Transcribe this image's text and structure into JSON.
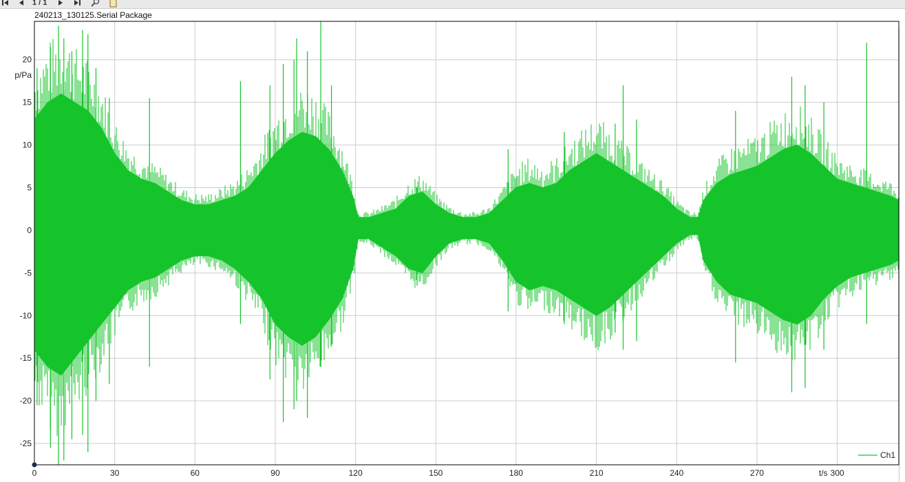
{
  "toolbar": {
    "page_indicator": "1 / 1",
    "first_icon": "first-page-icon",
    "prev_icon": "prev-page-icon",
    "next_icon": "next-page-icon",
    "last_icon": "last-page-icon",
    "tool_icon": "zoom-tool-icon",
    "clipboard_icon": "clipboard-icon"
  },
  "window": {
    "title": "240213_130125.Serial Package"
  },
  "colors": {
    "signal": "#14c42a",
    "grid": "#cccccc",
    "axis": "#000000"
  },
  "chart_data": {
    "type": "area",
    "title": "",
    "xlabel": "t/s",
    "ylabel": "p/Pa",
    "xlim": [
      0,
      323
    ],
    "ylim": [
      -27.5,
      24.5
    ],
    "x_ticks": [
      0,
      30,
      60,
      90,
      120,
      150,
      180,
      210,
      240,
      270,
      300
    ],
    "x_tick_labels": [
      "0",
      "30",
      "60",
      "90",
      "120",
      "150",
      "180",
      "210",
      "240",
      "270",
      "300"
    ],
    "y_ticks": [
      20,
      15,
      10,
      5,
      0,
      -5,
      -10,
      -15,
      -20,
      -25
    ],
    "y_tick_labels": [
      "20",
      "15",
      "10",
      "5",
      "0",
      "-5",
      "-10",
      "-15",
      "-20",
      "-25"
    ],
    "grid": true,
    "legend": {
      "position": "bottom-right",
      "entries": [
        "Ch1"
      ]
    },
    "series": [
      {
        "name": "Ch1",
        "x": [
          0,
          5,
          10,
          15,
          20,
          25,
          30,
          35,
          40,
          45,
          50,
          55,
          60,
          65,
          70,
          75,
          80,
          85,
          90,
          95,
          100,
          105,
          110,
          115,
          119,
          121,
          125,
          130,
          135,
          140,
          145,
          150,
          155,
          160,
          165,
          170,
          175,
          180,
          185,
          190,
          195,
          200,
          205,
          210,
          215,
          220,
          225,
          230,
          235,
          240,
          245,
          248,
          250,
          255,
          260,
          265,
          270,
          275,
          280,
          285,
          290,
          295,
          300,
          305,
          310,
          315,
          320,
          323
        ],
        "upper": [
          13,
          15,
          16,
          15,
          14,
          12,
          9,
          7,
          6,
          5.5,
          4.5,
          3.5,
          3,
          3,
          3.5,
          4,
          5,
          7,
          9,
          10.5,
          11.5,
          11,
          9.5,
          7,
          4,
          1.5,
          1.5,
          2,
          2.5,
          4,
          4.5,
          3,
          2,
          1.5,
          1.5,
          2,
          3.5,
          5,
          5.5,
          5,
          5.5,
          7,
          8,
          9,
          8,
          7,
          6,
          5,
          4,
          2.5,
          1.5,
          1.5,
          3.5,
          5.5,
          6.5,
          7,
          7.5,
          8.5,
          9.5,
          10,
          9,
          7.5,
          6,
          5.5,
          5,
          4.5,
          4,
          3.5
        ],
        "lower": [
          -14,
          -16,
          -17,
          -15,
          -13,
          -11,
          -9,
          -7,
          -6,
          -5.5,
          -4.5,
          -3.5,
          -3,
          -3,
          -3.5,
          -4.5,
          -6,
          -8,
          -11,
          -12.5,
          -13.5,
          -12.5,
          -10.5,
          -8,
          -4.5,
          -1,
          -1,
          -2,
          -3,
          -4.5,
          -5,
          -3,
          -1.5,
          -1,
          -1,
          -1.5,
          -3.5,
          -6,
          -7,
          -6.5,
          -7,
          -8,
          -9,
          -10,
          -9,
          -7.5,
          -6,
          -4.5,
          -3,
          -1.5,
          -0.5,
          -0.5,
          -3.5,
          -6,
          -7.5,
          -8,
          -8.5,
          -9.5,
          -10.5,
          -11,
          -10,
          -8,
          -6.5,
          -5.5,
          -5,
          -4.5,
          -4,
          -3.5
        ]
      }
    ],
    "peaks": [
      {
        "x": 1,
        "high": 19,
        "low": -20.5
      },
      {
        "x": 6,
        "high": 21.5,
        "low": -25.5
      },
      {
        "x": 9,
        "high": 24,
        "low": -27.5
      },
      {
        "x": 11,
        "high": 22.5,
        "low": -27
      },
      {
        "x": 14,
        "high": 21,
        "low": -24.5
      },
      {
        "x": 18,
        "high": 23.5,
        "low": -24
      },
      {
        "x": 20,
        "high": 23,
        "low": -26
      },
      {
        "x": 23,
        "high": 19,
        "low": -20
      },
      {
        "x": 28,
        "high": 15.5,
        "low": -18
      },
      {
        "x": 43,
        "high": 15.5,
        "low": -16
      },
      {
        "x": 77,
        "high": 17.5,
        "low": -11
      },
      {
        "x": 88,
        "high": 17,
        "low": -17.5
      },
      {
        "x": 93,
        "high": 19.5,
        "low": -22.5
      },
      {
        "x": 97,
        "high": 20,
        "low": -21
      },
      {
        "x": 98,
        "high": 22.5,
        "low": -20
      },
      {
        "x": 102,
        "high": 21,
        "low": -22
      },
      {
        "x": 107,
        "high": 24.5,
        "low": -16
      },
      {
        "x": 111,
        "high": 17,
        "low": -13.5
      },
      {
        "x": 143,
        "high": 5,
        "low": -6.5
      },
      {
        "x": 177,
        "high": 9.5,
        "low": -9.5
      },
      {
        "x": 198,
        "high": 11.5,
        "low": -11
      },
      {
        "x": 217,
        "high": 12.5,
        "low": -12
      },
      {
        "x": 220,
        "high": 17,
        "low": -14
      },
      {
        "x": 225,
        "high": 13,
        "low": -13
      },
      {
        "x": 262,
        "high": 14,
        "low": -15.5
      },
      {
        "x": 283,
        "high": 18,
        "low": -19
      },
      {
        "x": 288,
        "high": 17,
        "low": -18.5
      },
      {
        "x": 295,
        "high": 15,
        "low": -14
      },
      {
        "x": 311,
        "high": 22,
        "low": -11
      }
    ]
  }
}
